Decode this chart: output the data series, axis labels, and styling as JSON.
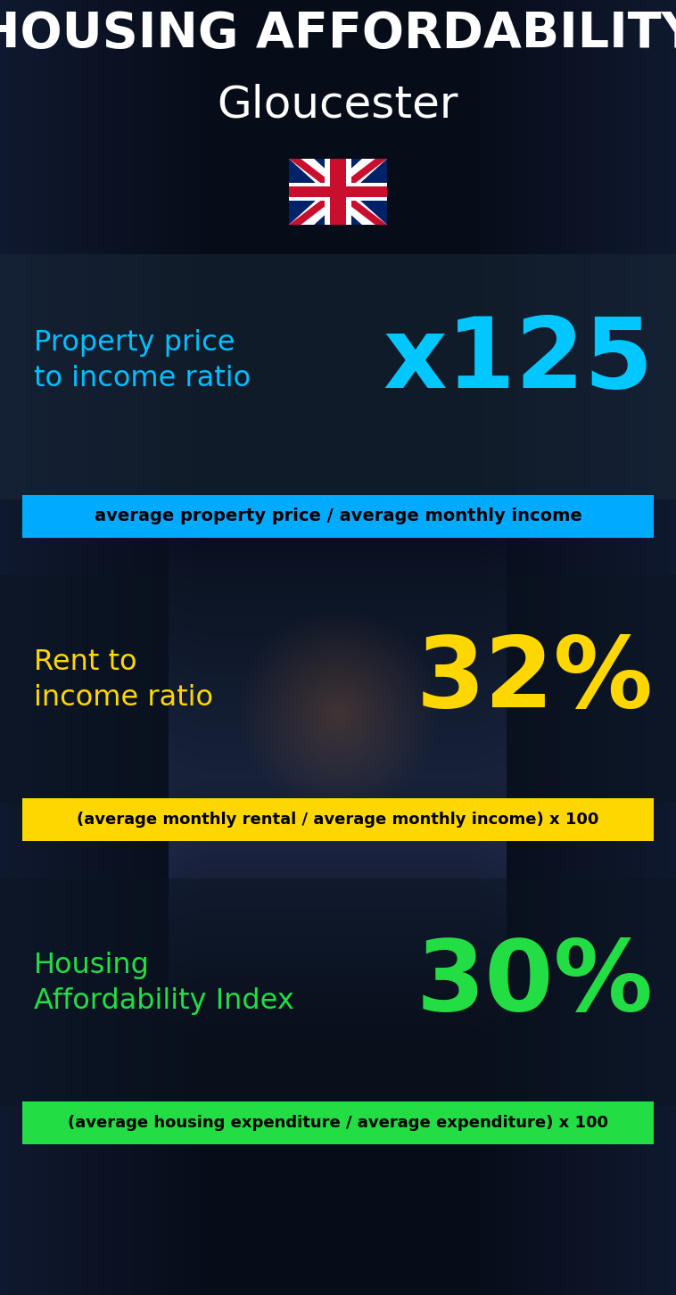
{
  "title_line1": "HOUSING AFFORDABILITY",
  "title_line2": "Gloucester",
  "section1_label": "Property price\nto income ratio",
  "section1_value": "x125",
  "section1_label_color": "#00bfff",
  "section1_value_color": "#00c8ff",
  "section1_banner_text": "average property price / average monthly income",
  "section1_banner_bg": "#00aaff",
  "section2_label": "Rent to\nincome ratio",
  "section2_value": "32%",
  "section2_label_color": "#FFD700",
  "section2_value_color": "#FFD700",
  "section2_banner_text": "(average monthly rental / average monthly income) x 100",
  "section2_banner_bg": "#FFD700",
  "section3_label": "Housing\nAffordability Index",
  "section3_value": "30%",
  "section3_label_color": "#22dd44",
  "section3_value_color": "#22dd44",
  "section3_banner_text": "(average housing expenditure / average expenditure) x 100",
  "section3_banner_bg": "#22dd44",
  "bg_dark": "#050a12",
  "bg_mid": "#0d1a28",
  "bg_light": "#1a3a5c",
  "title_color": "#ffffff",
  "banner_text_color": "#000000",
  "section1_panel_color": "#1a2a3a",
  "section2_panel_color": "#0a1520",
  "section3_panel_color": "#0a1520"
}
